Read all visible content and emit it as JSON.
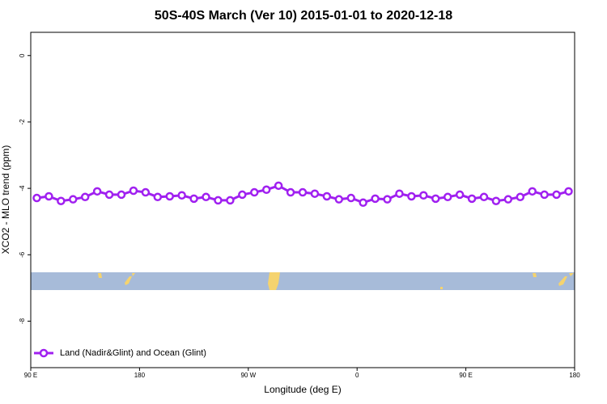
{
  "chart_data": {
    "type": "line",
    "title": "50S-40S March (Ver 10)   2015-01-01 to 2020-12-18",
    "x_label": "Longitude (deg E)",
    "y_label": "XCO2 - MLO trend (ppm)",
    "x": [
      95,
      105,
      115,
      125,
      135,
      145,
      155,
      165,
      175,
      185,
      195,
      205,
      215,
      225,
      235,
      245,
      255,
      265,
      275,
      285,
      295,
      305,
      315,
      325,
      335,
      345,
      355,
      365,
      375,
      385,
      395,
      405,
      415,
      425,
      435,
      445,
      455,
      465,
      475,
      485,
      495,
      505,
      515,
      525,
      535
    ],
    "series": [
      {
        "name": "Land (Nadir&Glint) and Ocean (Glint)",
        "color": "#a020f0",
        "values": [
          -4.29,
          -4.24,
          -4.38,
          -4.33,
          -4.26,
          -4.09,
          -4.19,
          -4.19,
          -4.07,
          -4.12,
          -4.26,
          -4.24,
          -4.21,
          -4.31,
          -4.26,
          -4.36,
          -4.36,
          -4.19,
          -4.12,
          -4.04,
          -3.92,
          -4.12,
          -4.12,
          -4.16,
          -4.24,
          -4.33,
          -4.29,
          -4.43,
          -4.31,
          -4.33,
          -4.16,
          -4.24,
          -4.21,
          -4.31,
          -4.26,
          -4.19,
          -4.31,
          -4.26,
          -4.38,
          -4.33,
          -4.26,
          -4.09,
          -4.19,
          -4.19,
          -4.09
        ]
      }
    ],
    "xlim": [
      90,
      540
    ],
    "xticks": [
      {
        "value": 90,
        "label": "90 E"
      },
      {
        "value": 180,
        "label": "180"
      },
      {
        "value": 270,
        "label": "90 W"
      },
      {
        "value": 360,
        "label": "0"
      },
      {
        "value": 450,
        "label": "90 E"
      },
      {
        "value": 540,
        "label": "180"
      }
    ],
    "ylim": [
      -9.4,
      0.7
    ],
    "yticks": [
      0,
      -2,
      -4,
      -6,
      -8
    ],
    "legend": "bottom-left"
  }
}
